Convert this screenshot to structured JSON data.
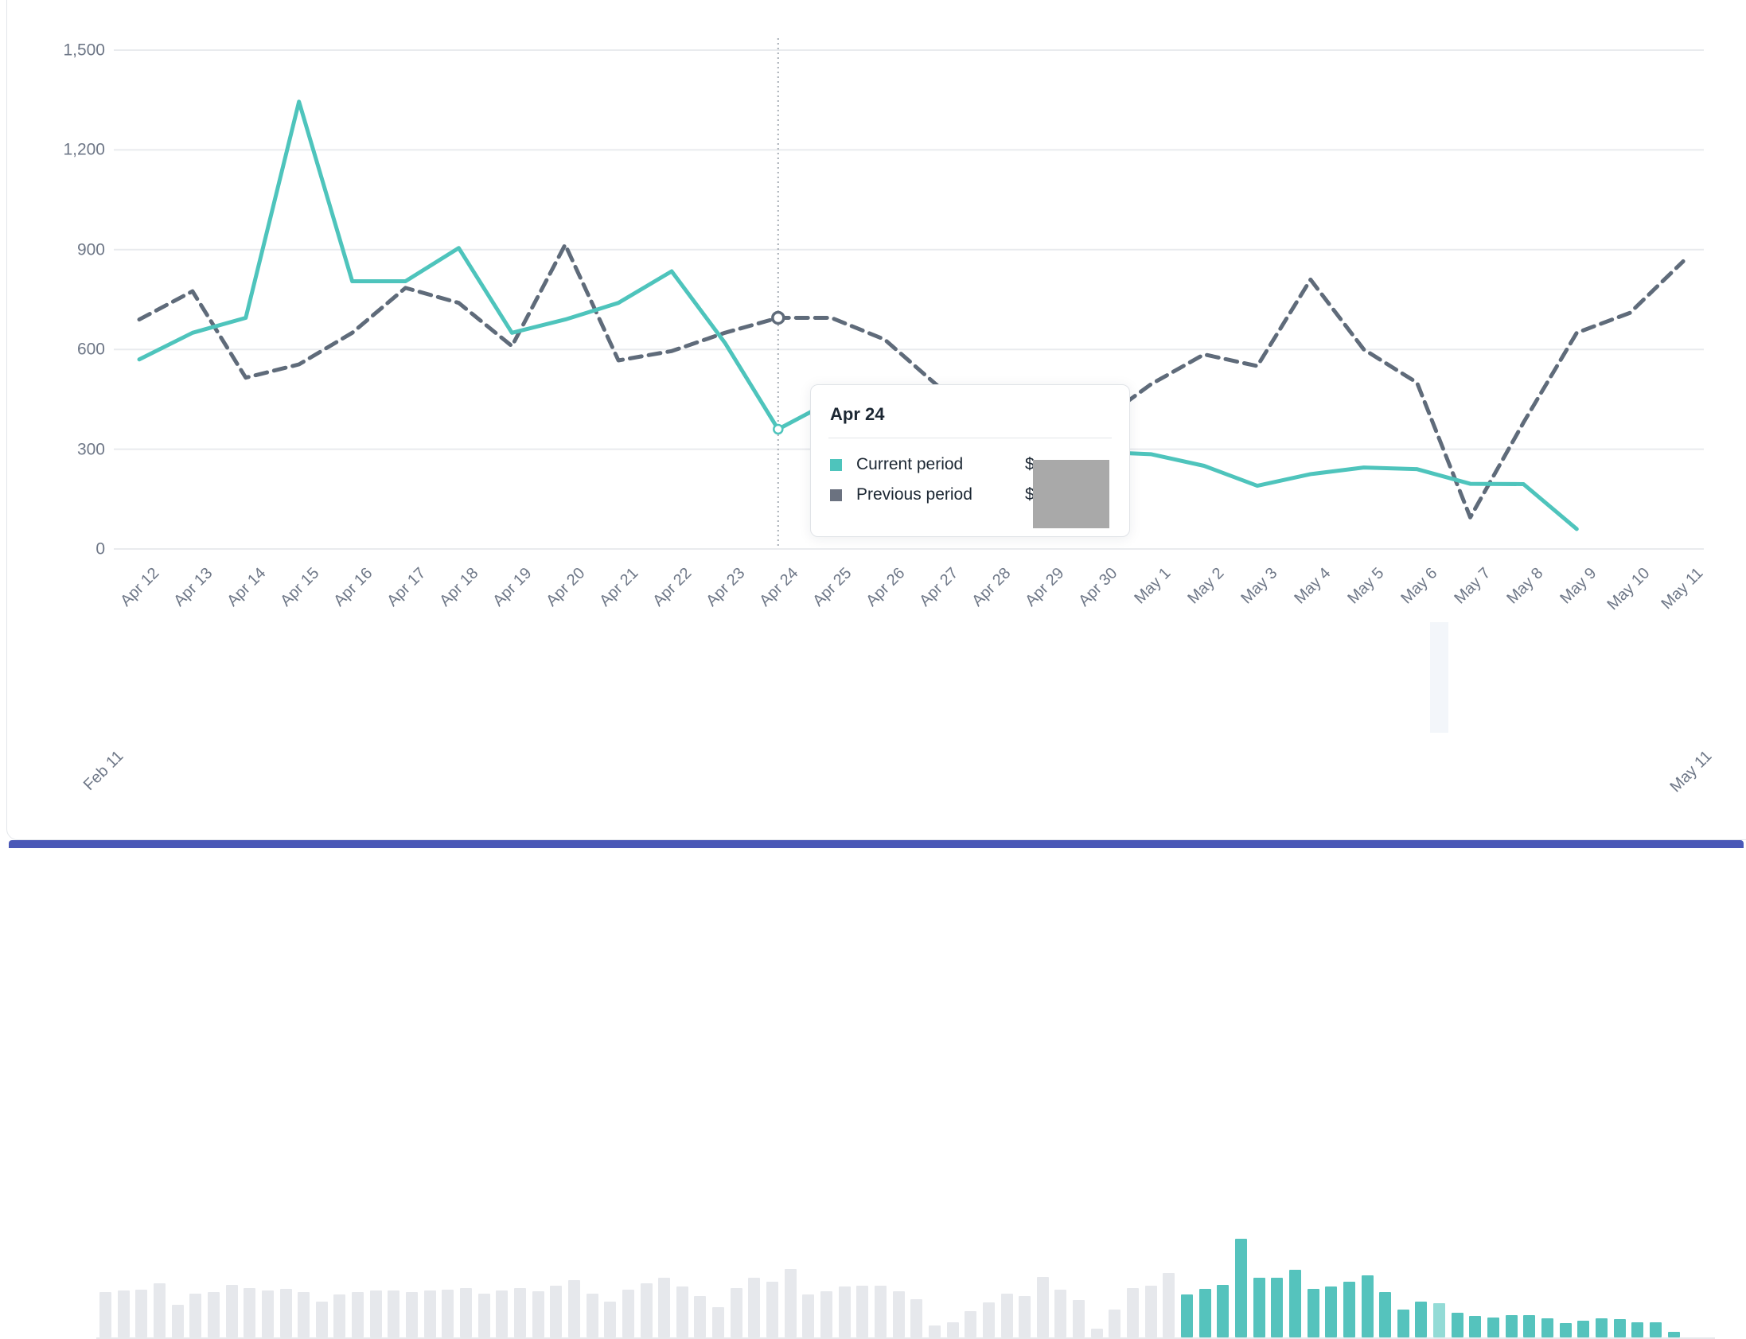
{
  "colors": {
    "accent_teal": "#4ec4bc",
    "previous_gray": "#5f6b7a",
    "grid": "#e9ebee",
    "tick_text": "#6e7787",
    "card_border": "#e3e6ea",
    "mini_bar_gray": "#e6e8ec",
    "mini_bar_teal": "#55c3bd",
    "mini_bar_teal_light": "#93dbd6",
    "mini_hover_bg": "#f3f6fa",
    "bottom_strip_indigo": "#4a58b7",
    "redaction_gray": "#a9a9a9",
    "legend_gray_swatch": "#6b7280",
    "hover_line": "#a7adb5"
  },
  "chart_data": {
    "type": "line",
    "title": "",
    "xlabel": "",
    "ylabel": "",
    "ylim": [
      0,
      1500
    ],
    "grid": true,
    "legend_position": "tooltip",
    "y_tick_labels": [
      "0",
      "300",
      "600",
      "900",
      "1,200",
      "1,500"
    ],
    "y_tick_values": [
      0,
      300,
      600,
      900,
      1200,
      1500
    ],
    "x_labels": [
      "Apr 12",
      "Apr 13",
      "Apr 14",
      "Apr 15",
      "Apr 16",
      "Apr 17",
      "Apr 18",
      "Apr 19",
      "Apr 20",
      "Apr 21",
      "Apr 22",
      "Apr 23",
      "Apr 24",
      "Apr 25",
      "Apr 26",
      "Apr 27",
      "Apr 28",
      "Apr 29",
      "Apr 30",
      "May 1",
      "May 2",
      "May 3",
      "May 4",
      "May 5",
      "May 6",
      "May 7",
      "May 8",
      "May 9",
      "May 10",
      "May 11"
    ],
    "hover_index": 12,
    "series": [
      {
        "name": "Current period",
        "style": "solid",
        "color": "#4ec4bc",
        "values": [
          570,
          650,
          695,
          1345,
          805,
          805,
          905,
          650,
          690,
          740,
          835,
          620,
          360,
          445,
          400,
          350,
          320,
          300,
          292,
          285,
          250,
          190,
          225,
          245,
          240,
          196,
          195,
          60,
          null,
          null
        ]
      },
      {
        "name": "Previous period",
        "style": "dashed",
        "color": "#5f6b7a",
        "values": [
          690,
          775,
          515,
          555,
          650,
          785,
          740,
          610,
          915,
          567,
          595,
          650,
          695,
          695,
          630,
          490,
          430,
          395,
          378,
          495,
          585,
          550,
          810,
          600,
          500,
          95,
          380,
          650,
          710,
          865
        ]
      }
    ]
  },
  "tooltip": {
    "title": "Apr 24",
    "rows": [
      {
        "label": "Current period",
        "value": "$",
        "swatch_color": "#4ec4bc"
      },
      {
        "label": "Previous period",
        "value": "$",
        "swatch_color": "#6b7280"
      }
    ],
    "values_redacted": true
  },
  "mini_chart": {
    "type": "bar",
    "start_label": "Feb 11",
    "end_label": "May 11",
    "selected_start_index": 60,
    "highlight_index": 74,
    "values": [
      57,
      59,
      60,
      68,
      41,
      55,
      57,
      66,
      62,
      59,
      61,
      57,
      45,
      54,
      57,
      59,
      59,
      57,
      59,
      60,
      62,
      55,
      59,
      62,
      58,
      65,
      72,
      55,
      45,
      60,
      68,
      75,
      64,
      52,
      38,
      62,
      75,
      70,
      86,
      54,
      58,
      64,
      65,
      65,
      58,
      48,
      15,
      19,
      33,
      44,
      55,
      52,
      76,
      60,
      47,
      11,
      35,
      62,
      65,
      81,
      54,
      61,
      66,
      124,
      75,
      75,
      85,
      61,
      64,
      70,
      78,
      57,
      35,
      45,
      43,
      31,
      27,
      25,
      28,
      28,
      24,
      18,
      21,
      24,
      23,
      19,
      19,
      7,
      0,
      0
    ]
  }
}
